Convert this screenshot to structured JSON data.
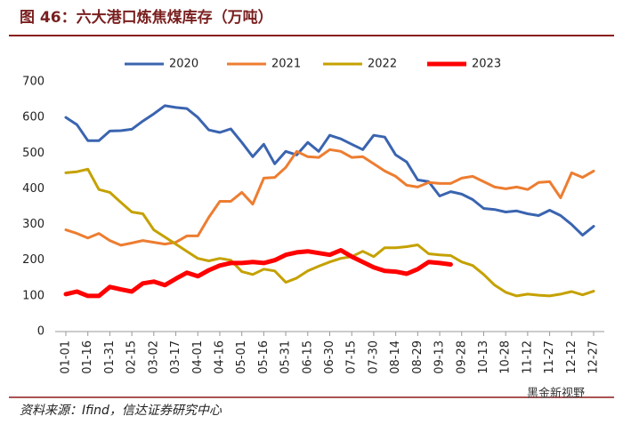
{
  "chart_data": {
    "type": "line",
    "title": "图 46：六大港口炼焦煤库存（万吨）",
    "source": "资料来源：Ifind，信达证券研究中心",
    "watermark": "黑金新视野",
    "categories": [
      "01-01",
      null,
      "01-16",
      null,
      "01-31",
      null,
      "02-15",
      null,
      "03-02",
      null,
      "03-17",
      null,
      "04-01",
      null,
      "04-16",
      null,
      "05-01",
      null,
      "05-16",
      null,
      "05-31",
      null,
      "06-15",
      null,
      "06-30",
      null,
      "07-15",
      null,
      "07-30",
      null,
      "08-14",
      null,
      "08-29",
      null,
      "09-13",
      null,
      "09-28",
      null,
      "10-13",
      null,
      "10-28",
      null,
      "11-12",
      null,
      "11-27",
      null,
      "12-12",
      null,
      "12-27"
    ],
    "ylim": [
      0,
      700
    ],
    "yticks": [
      0,
      100,
      200,
      300,
      400,
      500,
      600,
      700
    ],
    "grid": false,
    "legend": "top",
    "series": [
      {
        "name": "2020",
        "color": "#3a64b0",
        "width": 3,
        "values": [
          600,
          580,
          535,
          535,
          562,
          563,
          567,
          590,
          610,
          633,
          628,
          625,
          600,
          565,
          558,
          568,
          530,
          490,
          525,
          470,
          505,
          495,
          530,
          505,
          550,
          540,
          525,
          510,
          550,
          545,
          495,
          475,
          425,
          420,
          380,
          392,
          385,
          370,
          345,
          342,
          335,
          338,
          330,
          325,
          340,
          325,
          300,
          270,
          295
        ]
      },
      {
        "name": "2021",
        "color": "#ed7d31",
        "width": 3,
        "values": [
          285,
          275,
          262,
          275,
          255,
          242,
          248,
          255,
          250,
          245,
          250,
          268,
          268,
          320,
          365,
          365,
          390,
          357,
          430,
          432,
          460,
          505,
          490,
          488,
          510,
          505,
          488,
          490,
          470,
          450,
          435,
          410,
          405,
          418,
          415,
          415,
          430,
          435,
          420,
          405,
          400,
          405,
          398,
          418,
          420,
          375,
          445,
          432,
          450
        ]
      },
      {
        "name": "2022",
        "color": "#c5a100",
        "width": 3,
        "values": [
          445,
          448,
          455,
          398,
          390,
          362,
          335,
          330,
          285,
          265,
          245,
          225,
          205,
          198,
          205,
          200,
          168,
          160,
          175,
          170,
          138,
          150,
          170,
          183,
          195,
          205,
          210,
          225,
          210,
          235,
          235,
          238,
          243,
          218,
          215,
          213,
          195,
          185,
          160,
          130,
          110,
          100,
          105,
          102,
          100,
          105,
          112,
          103,
          113
        ]
      },
      {
        "name": "2023",
        "color": "#ff0000",
        "width": 5,
        "values": [
          105,
          112,
          100,
          100,
          125,
          118,
          112,
          135,
          140,
          130,
          148,
          165,
          155,
          172,
          185,
          192,
          192,
          195,
          192,
          200,
          215,
          222,
          225,
          220,
          215,
          228,
          210,
          195,
          180,
          170,
          168,
          162,
          175,
          195,
          192,
          188,
          null,
          null,
          null,
          null,
          null,
          null,
          null,
          null,
          null,
          null,
          null,
          null,
          null
        ]
      }
    ]
  }
}
